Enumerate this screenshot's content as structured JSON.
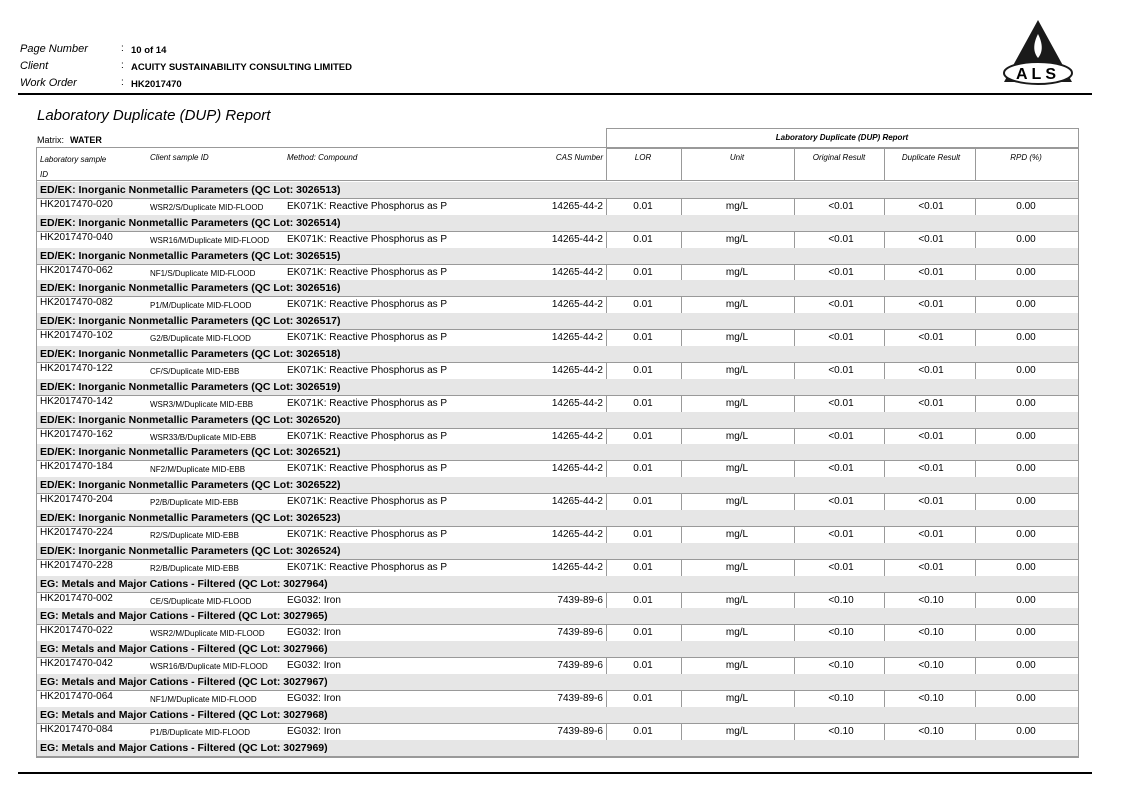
{
  "header": {
    "fields": [
      {
        "label": "Page Number",
        "value": "10 of 14"
      },
      {
        "label": "Client",
        "value": "ACUITY SUSTAINABILITY CONSULTING LIMITED"
      },
      {
        "label": "Work Order",
        "value": "HK2017470"
      }
    ],
    "logo": "ALS"
  },
  "title": "Laboratory Duplicate (DUP) Report",
  "matrix_label": "Matrix:",
  "matrix": "WATER",
  "table": {
    "group_header": "Laboratory Duplicate (DUP) Report",
    "columns": [
      "Laboratory sample ID",
      "Client sample ID",
      "Method: Compound",
      "CAS Number",
      "LOR",
      "Unit",
      "Original Result",
      "Duplicate Result",
      "RPD (%)"
    ],
    "groups": [
      {
        "title": "ED/EK: Inorganic Nonmetallic Parameters  (QC Lot: 3026513)",
        "rows": [
          [
            "HK2017470-020",
            "WSR2/S/Duplicate MID-FLOOD",
            "EK071K: Reactive Phosphorus as P",
            "14265-44-2",
            "0.01",
            "mg/L",
            "<0.01",
            "<0.01",
            "0.00"
          ]
        ]
      },
      {
        "title": "ED/EK: Inorganic Nonmetallic Parameters  (QC Lot: 3026514)",
        "rows": [
          [
            "HK2017470-040",
            "WSR16/M/Duplicate MID-FLOOD",
            "EK071K: Reactive Phosphorus as P",
            "14265-44-2",
            "0.01",
            "mg/L",
            "<0.01",
            "<0.01",
            "0.00"
          ]
        ]
      },
      {
        "title": "ED/EK: Inorganic Nonmetallic Parameters  (QC Lot: 3026515)",
        "rows": [
          [
            "HK2017470-062",
            "NF1/S/Duplicate MID-FLOOD",
            "EK071K: Reactive Phosphorus as P",
            "14265-44-2",
            "0.01",
            "mg/L",
            "<0.01",
            "<0.01",
            "0.00"
          ]
        ]
      },
      {
        "title": "ED/EK: Inorganic Nonmetallic Parameters  (QC Lot: 3026516)",
        "rows": [
          [
            "HK2017470-082",
            "P1/M/Duplicate MID-FLOOD",
            "EK071K: Reactive Phosphorus as P",
            "14265-44-2",
            "0.01",
            "mg/L",
            "<0.01",
            "<0.01",
            "0.00"
          ]
        ]
      },
      {
        "title": "ED/EK: Inorganic Nonmetallic Parameters  (QC Lot: 3026517)",
        "rows": [
          [
            "HK2017470-102",
            "G2/B/Duplicate MID-FLOOD",
            "EK071K: Reactive Phosphorus as P",
            "14265-44-2",
            "0.01",
            "mg/L",
            "<0.01",
            "<0.01",
            "0.00"
          ]
        ]
      },
      {
        "title": "ED/EK: Inorganic Nonmetallic Parameters  (QC Lot: 3026518)",
        "rows": [
          [
            "HK2017470-122",
            "CF/S/Duplicate MID-EBB",
            "EK071K: Reactive Phosphorus as P",
            "14265-44-2",
            "0.01",
            "mg/L",
            "<0.01",
            "<0.01",
            "0.00"
          ]
        ]
      },
      {
        "title": "ED/EK: Inorganic Nonmetallic Parameters  (QC Lot: 3026519)",
        "rows": [
          [
            "HK2017470-142",
            "WSR3/M/Duplicate MID-EBB",
            "EK071K: Reactive Phosphorus as P",
            "14265-44-2",
            "0.01",
            "mg/L",
            "<0.01",
            "<0.01",
            "0.00"
          ]
        ]
      },
      {
        "title": "ED/EK: Inorganic Nonmetallic Parameters  (QC Lot: 3026520)",
        "rows": [
          [
            "HK2017470-162",
            "WSR33/B/Duplicate MID-EBB",
            "EK071K: Reactive Phosphorus as P",
            "14265-44-2",
            "0.01",
            "mg/L",
            "<0.01",
            "<0.01",
            "0.00"
          ]
        ]
      },
      {
        "title": "ED/EK: Inorganic Nonmetallic Parameters  (QC Lot: 3026521)",
        "rows": [
          [
            "HK2017470-184",
            "NF2/M/Duplicate MID-EBB",
            "EK071K: Reactive Phosphorus as P",
            "14265-44-2",
            "0.01",
            "mg/L",
            "<0.01",
            "<0.01",
            "0.00"
          ]
        ]
      },
      {
        "title": "ED/EK: Inorganic Nonmetallic Parameters  (QC Lot: 3026522)",
        "rows": [
          [
            "HK2017470-204",
            "P2/B/Duplicate MID-EBB",
            "EK071K: Reactive Phosphorus as P",
            "14265-44-2",
            "0.01",
            "mg/L",
            "<0.01",
            "<0.01",
            "0.00"
          ]
        ]
      },
      {
        "title": "ED/EK: Inorganic Nonmetallic Parameters  (QC Lot: 3026523)",
        "rows": [
          [
            "HK2017470-224",
            "R2/S/Duplicate MID-EBB",
            "EK071K: Reactive Phosphorus as P",
            "14265-44-2",
            "0.01",
            "mg/L",
            "<0.01",
            "<0.01",
            "0.00"
          ]
        ]
      },
      {
        "title": "ED/EK: Inorganic Nonmetallic Parameters  (QC Lot: 3026524)",
        "rows": [
          [
            "HK2017470-228",
            "R2/B/Duplicate MID-EBB",
            "EK071K: Reactive Phosphorus as P",
            "14265-44-2",
            "0.01",
            "mg/L",
            "<0.01",
            "<0.01",
            "0.00"
          ]
        ]
      },
      {
        "title": "EG: Metals and Major Cations - Filtered  (QC Lot: 3027964)",
        "rows": [
          [
            "HK2017470-002",
            "CE/S/Duplicate MID-FLOOD",
            "EG032: Iron",
            "7439-89-6",
            "0.01",
            "mg/L",
            "<0.10",
            "<0.10",
            "0.00"
          ]
        ]
      },
      {
        "title": "EG: Metals and Major Cations - Filtered  (QC Lot: 3027965)",
        "rows": [
          [
            "HK2017470-022",
            "WSR2/M/Duplicate MID-FLOOD",
            "EG032: Iron",
            "7439-89-6",
            "0.01",
            "mg/L",
            "<0.10",
            "<0.10",
            "0.00"
          ]
        ]
      },
      {
        "title": "EG: Metals and Major Cations - Filtered  (QC Lot: 3027966)",
        "rows": [
          [
            "HK2017470-042",
            "WSR16/B/Duplicate MID-FLOOD",
            "EG032: Iron",
            "7439-89-6",
            "0.01",
            "mg/L",
            "<0.10",
            "<0.10",
            "0.00"
          ]
        ]
      },
      {
        "title": "EG: Metals and Major Cations - Filtered  (QC Lot: 3027967)",
        "rows": [
          [
            "HK2017470-064",
            "NF1/M/Duplicate MID-FLOOD",
            "EG032: Iron",
            "7439-89-6",
            "0.01",
            "mg/L",
            "<0.10",
            "<0.10",
            "0.00"
          ]
        ]
      },
      {
        "title": "EG: Metals and Major Cations - Filtered  (QC Lot: 3027968)",
        "rows": [
          [
            "HK2017470-084",
            "P1/B/Duplicate MID-FLOOD",
            "EG032: Iron",
            "7439-89-6",
            "0.01",
            "mg/L",
            "<0.10",
            "<0.10",
            "0.00"
          ]
        ]
      },
      {
        "title": "EG: Metals and Major Cations - Filtered  (QC Lot: 3027969)",
        "rows": []
      }
    ]
  }
}
